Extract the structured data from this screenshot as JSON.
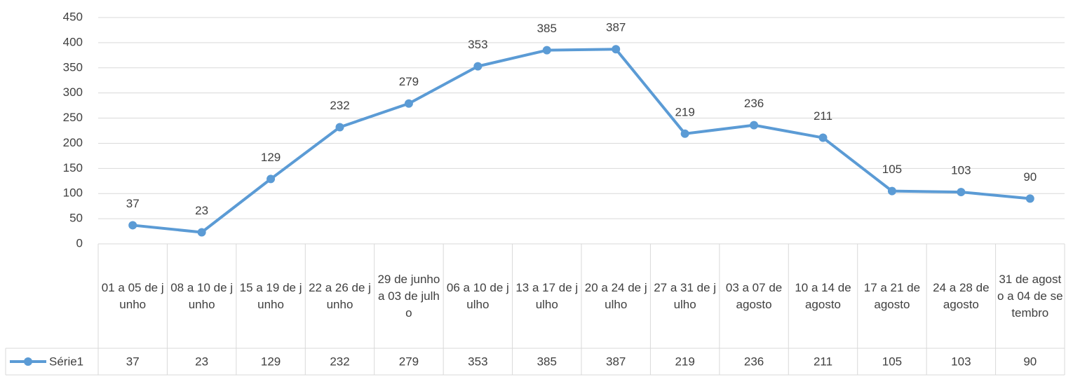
{
  "chart_data": {
    "type": "line",
    "categories": [
      "01 a 05 de junho",
      "08 a 10 de junho",
      "15 a 19 de junho",
      "22 a 26 de junho",
      "29 de junho a 03 de julho",
      "06 a 10 de julho",
      "13 a 17 de julho",
      "20 a 24 de julho",
      "27 a 31 de julho",
      "03 a 07 de agosto",
      "10 a 14 de agosto",
      "17 a 21 de agosto",
      "24 a 28 de agosto",
      "31 de agosto a 04 de setembro"
    ],
    "series": [
      {
        "name": "Série1",
        "color": "#5b9bd5",
        "values": [
          37,
          23,
          129,
          232,
          279,
          353,
          385,
          387,
          219,
          236,
          211,
          105,
          103,
          90
        ]
      }
    ],
    "ylim": [
      0,
      450
    ],
    "yticks": [
      0,
      50,
      100,
      150,
      200,
      250,
      300,
      350,
      400,
      450
    ],
    "grid": true
  }
}
